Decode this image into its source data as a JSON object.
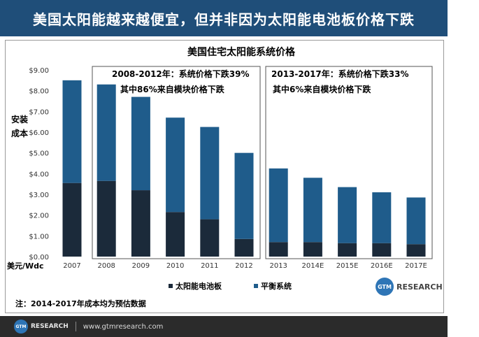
{
  "banner": {
    "title": "美国太阳能越来越便宜，但并非因为太阳能电池板价格下跌"
  },
  "chart_data": {
    "type": "bar",
    "stacked": true,
    "title": "美国住宅太阳能系统价格",
    "ylabel_line1": "安装",
    "ylabel_line2": "成本",
    "yunit": "美元/Wdc",
    "ylim": [
      0,
      9
    ],
    "yticks": [
      "$0.00",
      "$1.00",
      "$2.00",
      "$3.00",
      "$4.00",
      "$5.00",
      "$6.00",
      "$7.00",
      "$8.00",
      "$9.00"
    ],
    "categories": [
      "2007",
      "2008",
      "2009",
      "2010",
      "2011",
      "2012",
      "2013",
      "2014E",
      "2015E",
      "2016E",
      "2017E"
    ],
    "series": [
      {
        "name": "太阳能电池板",
        "color": "#1b2a3a",
        "values": [
          3.55,
          3.65,
          3.2,
          2.15,
          1.8,
          0.85,
          0.7,
          0.7,
          0.65,
          0.65,
          0.6
        ]
      },
      {
        "name": "平衡系统",
        "color": "#1f5c8b",
        "values": [
          4.95,
          4.65,
          4.5,
          4.55,
          4.45,
          4.15,
          3.55,
          3.1,
          2.7,
          2.45,
          2.25
        ]
      }
    ],
    "annotations": [
      {
        "line1": "2008-2012年：系统价格下跌39%",
        "line2": "其中86%来自模块价格下跌"
      },
      {
        "line1": "2013-2017年：系统价格下跌33%",
        "line2": "其中6%来自模块价格下跌"
      }
    ],
    "legend_position": "bottom",
    "note": "注：2014-2017年成本均为预估数据",
    "grid": false
  },
  "logo": {
    "circle": "GTM",
    "text": "RESEARCH"
  },
  "footer": {
    "circle": "GTM",
    "brand": "RESEARCH",
    "url": "www.gtmresearch.com"
  }
}
